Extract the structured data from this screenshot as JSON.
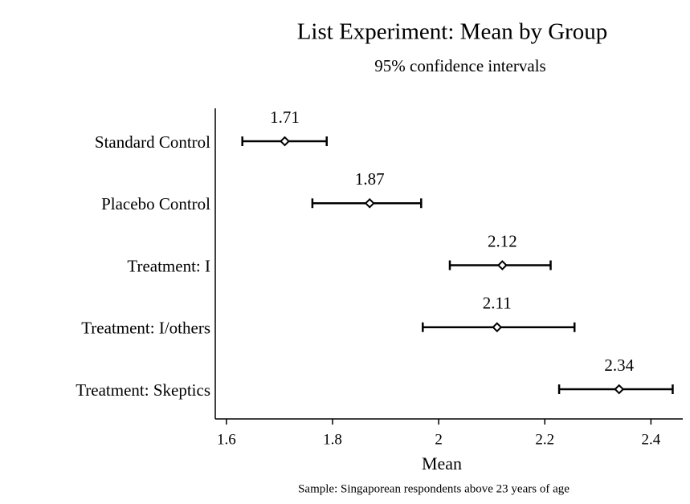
{
  "chart_data": {
    "type": "errorbar",
    "title": "List Experiment: Mean by Group",
    "subtitle": "95% confidence intervals",
    "x_label": "Mean",
    "note": "Sample: Singaporean respondents above 23 years of age",
    "categories": [
      "Standard Control",
      "Placebo Control",
      "Treatment: I",
      "Treatment: I/others",
      "Treatment: Skeptics"
    ],
    "values": [
      1.71,
      1.87,
      2.12,
      2.11,
      2.34
    ],
    "lower": [
      1.63,
      1.762,
      2.021,
      1.97,
      2.227
    ],
    "upper": [
      1.789,
      1.967,
      2.211,
      2.256,
      2.441
    ],
    "color": "#000000",
    "xlim": [
      1.579,
      2.46
    ],
    "xticks": [
      1.6,
      1.8,
      2,
      2.2,
      2.4
    ]
  }
}
